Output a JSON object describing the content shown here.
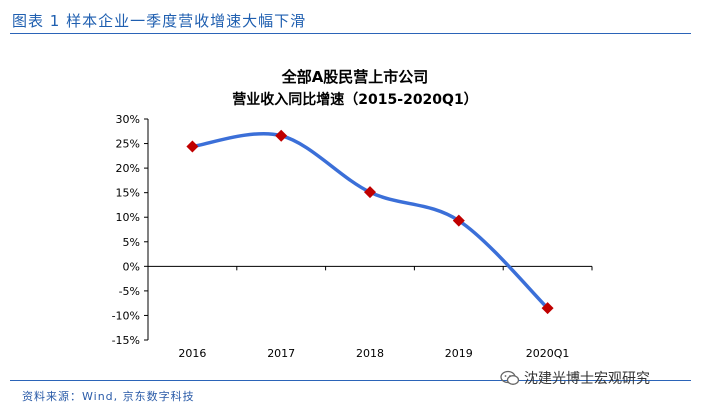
{
  "figure": {
    "label": "图表 1 样本企业一季度营收增速大幅下滑",
    "source": "资料来源：Wind, 京东数字科技",
    "watermark": "沈建光博士宏观研究"
  },
  "colors": {
    "line": "#3b6fd8",
    "marker": "#c00000",
    "axis": "#000000",
    "header_blue": "#1f5fb0"
  },
  "chart_data": {
    "type": "line",
    "title": "全部A股民营上市公司",
    "subtitle": "营业收入同比增速（2015-2020Q1）",
    "categories": [
      "2016",
      "2017",
      "2018",
      "2019",
      "2020Q1"
    ],
    "series": [
      {
        "values": [
          24.4,
          26.6,
          15.1,
          9.3,
          -8.5
        ]
      }
    ],
    "ylim": [
      -15,
      30
    ],
    "yticks": [
      30,
      25,
      20,
      15,
      10,
      5,
      0,
      -5,
      -10,
      -15
    ],
    "ytick_labels": [
      "30%",
      "25%",
      "20%",
      "15%",
      "10%",
      "5%",
      "0%",
      "-5%",
      "-10%",
      "-15%"
    ],
    "xlabel": "",
    "ylabel": "",
    "grid": false,
    "legend": "none"
  }
}
